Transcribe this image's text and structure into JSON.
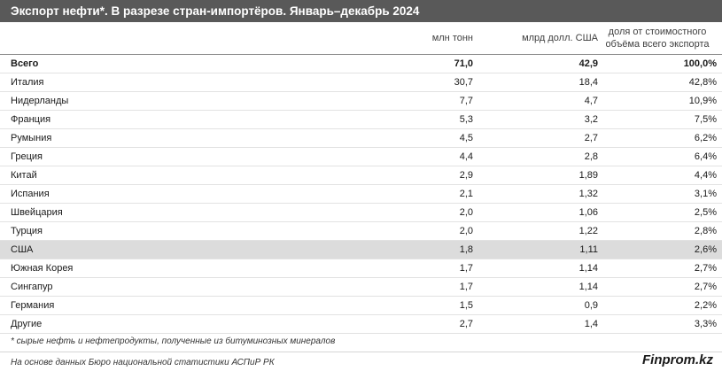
{
  "header": {
    "title": "Экспорт нефти*. В разрезе стран-импортёров. Январь–декабрь 2024"
  },
  "columns": {
    "mln_tons": "млн тонн",
    "bln_usd": "млрд долл. США",
    "share_line1": "доля от стоимостного",
    "share_line2": "объёма всего экспорта"
  },
  "rows": [
    {
      "name": "Всего",
      "mln": "71,0",
      "mlrd": "42,9",
      "share": "100,0%"
    },
    {
      "name": "Италия",
      "mln": "30,7",
      "mlrd": "18,4",
      "share": "42,8%"
    },
    {
      "name": "Нидерланды",
      "mln": "7,7",
      "mlrd": "4,7",
      "share": "10,9%"
    },
    {
      "name": "Франция",
      "mln": "5,3",
      "mlrd": "3,2",
      "share": "7,5%"
    },
    {
      "name": "Румыния",
      "mln": "4,5",
      "mlrd": "2,7",
      "share": "6,2%"
    },
    {
      "name": "Греция",
      "mln": "4,4",
      "mlrd": "2,8",
      "share": "6,4%"
    },
    {
      "name": "Китай",
      "mln": "2,9",
      "mlrd": "1,89",
      "share": "4,4%"
    },
    {
      "name": "Испания",
      "mln": "2,1",
      "mlrd": "1,32",
      "share": "3,1%"
    },
    {
      "name": "Швейцария",
      "mln": "2,0",
      "mlrd": "1,06",
      "share": "2,5%"
    },
    {
      "name": "Турция",
      "mln": "2,0",
      "mlrd": "1,22",
      "share": "2,8%"
    },
    {
      "name": "США",
      "mln": "1,8",
      "mlrd": "1,11",
      "share": "2,6%"
    },
    {
      "name": "Южная Корея",
      "mln": "1,7",
      "mlrd": "1,14",
      "share": "2,7%"
    },
    {
      "name": "Сингапур",
      "mln": "1,7",
      "mlrd": "1,14",
      "share": "2,7%"
    },
    {
      "name": "Германия",
      "mln": "1,5",
      "mlrd": "0,9",
      "share": "2,2%"
    },
    {
      "name": "Другие",
      "mln": "2,7",
      "mlrd": "1,4",
      "share": "3,3%"
    }
  ],
  "footer": {
    "footnote": "* сырые нефть и нефтепродукты, полученные из битуминозных минералов",
    "source": "На основе данных Бюро национальной статистики АСПиР РК",
    "brand": "Finprom.kz"
  }
}
